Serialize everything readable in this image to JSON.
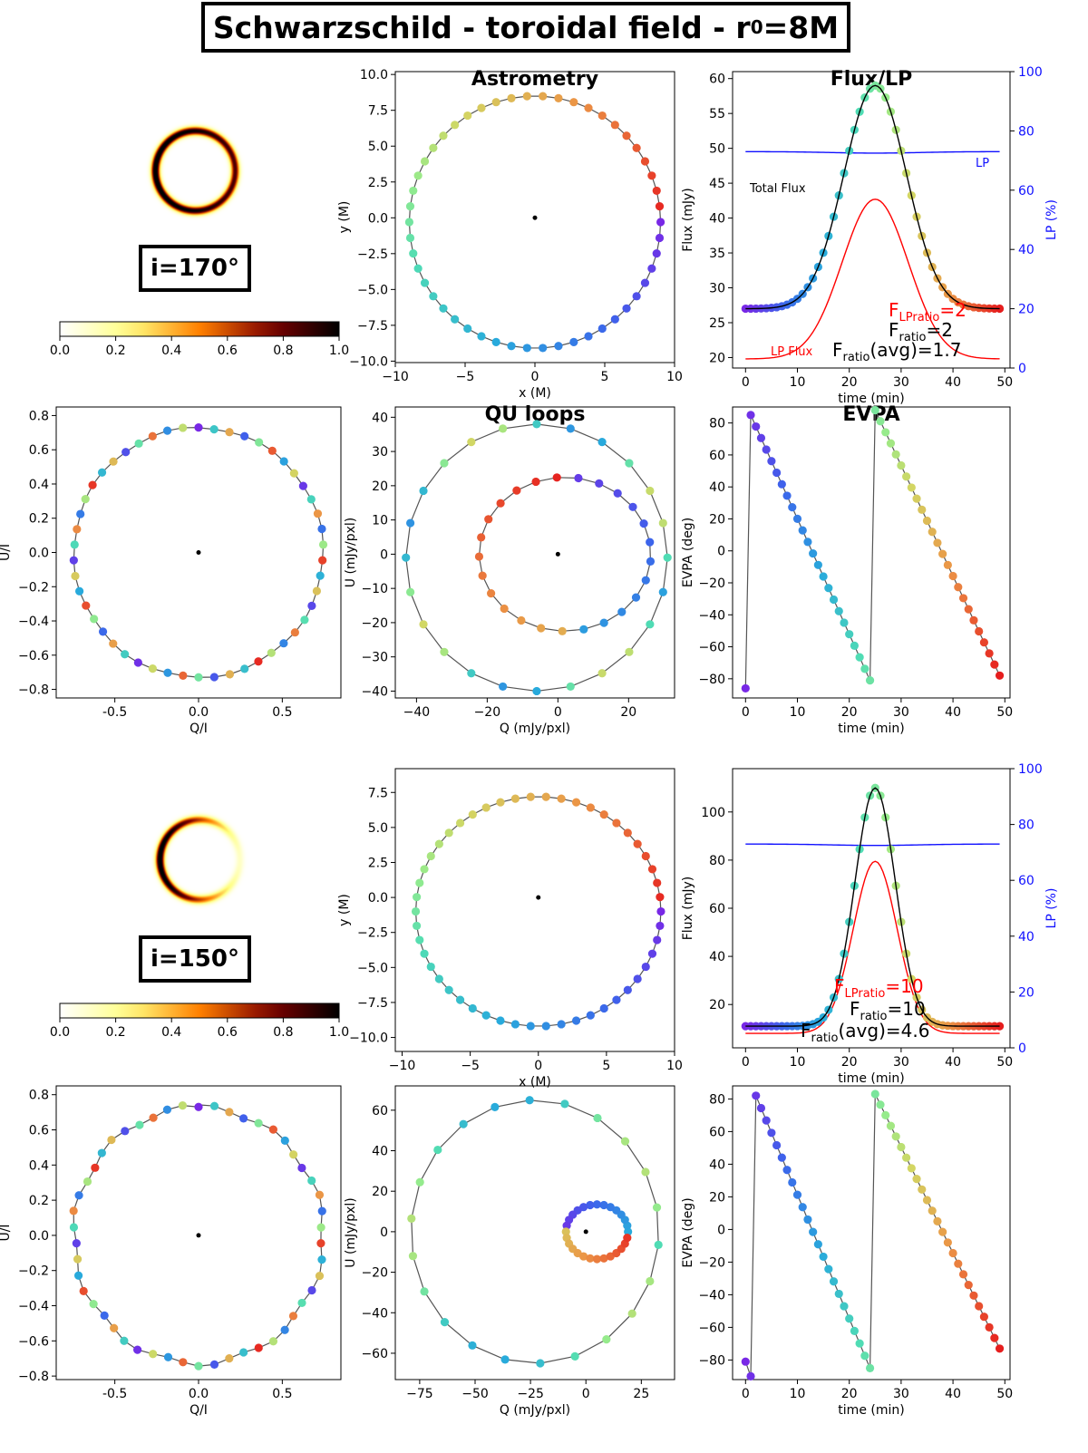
{
  "title": {
    "prefix": "Schwarzschild - toroidal field - r",
    "sub": "0",
    "suffix": "=8M"
  },
  "rows": [
    {
      "inclination_label": "i=170°",
      "colorbar_ticks": [
        "0.0",
        "0.2",
        "0.4",
        "0.6",
        "0.8",
        "1.0"
      ],
      "ring": {
        "asymmetry": 0.25
      },
      "flux_annot": {
        "total_flux": "Total Flux",
        "lp_label": "LP",
        "lp_flux": "LP Flux",
        "flpratio": "F",
        "flpratio_sub": "LPratio",
        "flpratio_val": "=2",
        "fratio": "F",
        "fratio_sub": "ratio",
        "fratio_val": "=2",
        "favg": "F",
        "favg_sub": "ratio",
        "favg_val": "(avg)=1.7"
      }
    },
    {
      "inclination_label": "i=150°",
      "colorbar_ticks": [
        "0.0",
        "0.2",
        "0.4",
        "0.6",
        "0.8",
        "1.0"
      ],
      "ring": {
        "asymmetry": 0.9
      },
      "flux_annot": {
        "total_flux": "",
        "lp_label": "",
        "lp_flux": "",
        "flpratio": "F",
        "flpratio_sub": "LPratio",
        "flpratio_val": "=10",
        "fratio": "F",
        "fratio_sub": "ratio",
        "fratio_val": "=10",
        "favg": "F",
        "favg_sub": "ratio",
        "favg_val": "(avg)=4.6"
      }
    }
  ],
  "chart_data": [
    {
      "id": "astrometry-170",
      "type": "scatter",
      "title": "Astrometry",
      "xlabel": "x (M)",
      "ylabel": "y (M)",
      "xlim": [
        -10,
        10
      ],
      "ylim": [
        -10.1,
        10.2
      ],
      "xticks": [
        -10,
        -5,
        0,
        5,
        10
      ],
      "yticks": [
        -10.0,
        -7.5,
        -5.0,
        -2.5,
        0.0,
        2.5,
        5.0,
        7.5,
        10.0
      ],
      "orbit": {
        "cx": 0,
        "cy": -0.3,
        "rx": 9.0,
        "ry": 8.8,
        "start_deg": 0,
        "points": 50,
        "direction": "ccw"
      },
      "center": [
        0,
        0
      ]
    },
    {
      "id": "flux-170",
      "type": "line",
      "title": "Flux/LP",
      "xlabel": "time (min)",
      "ylabel": "Flux (mJy)",
      "y2label": "LP (%)",
      "xlim": [
        -2.5,
        51
      ],
      "ylim": [
        18.5,
        61
      ],
      "y2lim": [
        0,
        100
      ],
      "xticks": [
        0,
        10,
        20,
        30,
        40,
        50
      ],
      "yticks": [
        20,
        25,
        30,
        35,
        40,
        45,
        50,
        55,
        60
      ],
      "y2ticks": [
        0,
        20,
        40,
        60,
        80,
        100
      ],
      "total_flux": {
        "base": 27.0,
        "peak": 59.0,
        "t_peak": 25,
        "width": 8.5
      },
      "lp_flux": {
        "base": 19.8,
        "peak": 42.7,
        "t_peak": 25,
        "width": 9
      },
      "lp_percent": {
        "value": 73,
        "dip": 0.5
      }
    },
    {
      "id": "qi-ui-170",
      "type": "scatter",
      "xlabel": "Q/I",
      "ylabel": "U/I",
      "xlim": [
        -0.85,
        0.85
      ],
      "ylim": [
        -0.85,
        0.85
      ],
      "xticks": [
        -0.5,
        0.0,
        0.5
      ],
      "yticks": [
        -0.8,
        -0.6,
        -0.4,
        -0.2,
        0.0,
        0.2,
        0.4,
        0.6,
        0.8
      ],
      "loop": {
        "radius": 0.73,
        "points": 50
      },
      "center": [
        0,
        0
      ]
    },
    {
      "id": "qu-170",
      "type": "scatter",
      "title": "QU loops",
      "xlabel": "Q (mJy/pxl)",
      "ylabel": "U (mJy/pxl)",
      "xlim": [
        -46,
        33
      ],
      "ylim": [
        -42,
        43
      ],
      "xticks": [
        -40,
        -20,
        0,
        20
      ],
      "yticks": [
        -40,
        -30,
        -20,
        -10,
        0,
        10,
        20,
        30,
        40
      ],
      "inner_loop": {
        "r": 22.5
      },
      "outer_loop": {
        "r": 38
      },
      "center": [
        0,
        0
      ]
    },
    {
      "id": "evpa-170",
      "type": "line",
      "title": "EVPA",
      "xlabel": "time (min)",
      "ylabel": "EVPA (deg)",
      "xlim": [
        -2.5,
        51
      ],
      "ylim": [
        -92,
        90
      ],
      "xticks": [
        0,
        10,
        20,
        30,
        40,
        50
      ],
      "yticks": [
        -80,
        -60,
        -40,
        -20,
        0,
        20,
        40,
        60,
        80
      ],
      "evpa": {
        "t0": 0,
        "v0": -86,
        "seg1": {
          "t_start": 1,
          "v_start": 85,
          "t_end": 24,
          "v_end": -81
        },
        "seg2": {
          "t_start": 25,
          "v_start": 88,
          "t_end": 49,
          "v_end": -78
        }
      }
    },
    {
      "id": "astrometry-150",
      "type": "scatter",
      "xlabel": "x (M)",
      "ylabel": "y (M)",
      "xlim": [
        -10.5,
        10
      ],
      "ylim": [
        -11,
        9.2
      ],
      "xticks": [
        -10,
        -5,
        0,
        5,
        10
      ],
      "yticks": [
        -10.0,
        -7.5,
        -5.0,
        -2.5,
        0.0,
        2.5,
        5.0,
        7.5
      ],
      "orbit": {
        "cx": 0,
        "cy": -1.0,
        "rx": 9.0,
        "ry": 8.2,
        "start_deg": 0,
        "points": 50,
        "direction": "ccw"
      },
      "center": [
        0,
        0
      ]
    },
    {
      "id": "flux-150",
      "type": "line",
      "xlabel": "time (min)",
      "ylabel": "Flux (mJy)",
      "y2label": "LP (%)",
      "xlim": [
        -2.5,
        51
      ],
      "ylim": [
        2,
        118
      ],
      "y2lim": [
        0,
        100
      ],
      "xticks": [
        0,
        10,
        20,
        30,
        40,
        50
      ],
      "yticks": [
        20,
        40,
        60,
        80,
        100
      ],
      "y2ticks": [
        0,
        20,
        40,
        60,
        80,
        100
      ],
      "total_flux": {
        "base": 11.0,
        "peak": 110.0,
        "t_peak": 25,
        "width": 5.5
      },
      "lp_flux": {
        "base": 8.0,
        "peak": 79.5,
        "t_peak": 25,
        "width": 6
      },
      "lp_percent": {
        "value": 73,
        "dip": 0.5
      }
    },
    {
      "id": "qi-ui-150",
      "type": "scatter",
      "xlabel": "Q/I",
      "ylabel": "U/I",
      "xlim": [
        -0.85,
        0.85
      ],
      "ylim": [
        -0.82,
        0.85
      ],
      "xticks": [
        -0.5,
        0.0,
        0.5
      ],
      "yticks": [
        -0.8,
        -0.6,
        -0.4,
        -0.2,
        0.0,
        0.2,
        0.4,
        0.6,
        0.8
      ],
      "loop": {
        "radius": 0.73,
        "points": 50
      },
      "center": [
        0,
        0
      ]
    },
    {
      "id": "qu-150",
      "type": "scatter",
      "xlabel": "Q (mJy/pxl)",
      "ylabel": "U (mJy/pxl)",
      "xlim": [
        -86,
        40
      ],
      "ylim": [
        -73,
        72
      ],
      "xticks": [
        -75,
        -50,
        -25,
        0,
        25
      ],
      "yticks": [
        -60,
        -40,
        -20,
        0,
        20,
        40,
        60
      ],
      "center": [
        0,
        0
      ]
    },
    {
      "id": "evpa-150",
      "type": "line",
      "xlabel": "time (min)",
      "ylabel": "EVPA (deg)",
      "xlim": [
        -2.5,
        51
      ],
      "ylim": [
        -92,
        88
      ],
      "xticks": [
        0,
        10,
        20,
        30,
        40,
        50
      ],
      "yticks": [
        -80,
        -60,
        -40,
        -20,
        0,
        20,
        40,
        60,
        80
      ],
      "evpa": {
        "t0": 0,
        "v0": -81,
        "t1": 1,
        "v1": -90,
        "seg1": {
          "t_start": 2,
          "v_start": 82,
          "t_end": 24,
          "v_end": -85
        },
        "seg2": {
          "t_start": 25,
          "v_start": 83,
          "t_end": 49,
          "v_end": -73
        }
      }
    }
  ]
}
